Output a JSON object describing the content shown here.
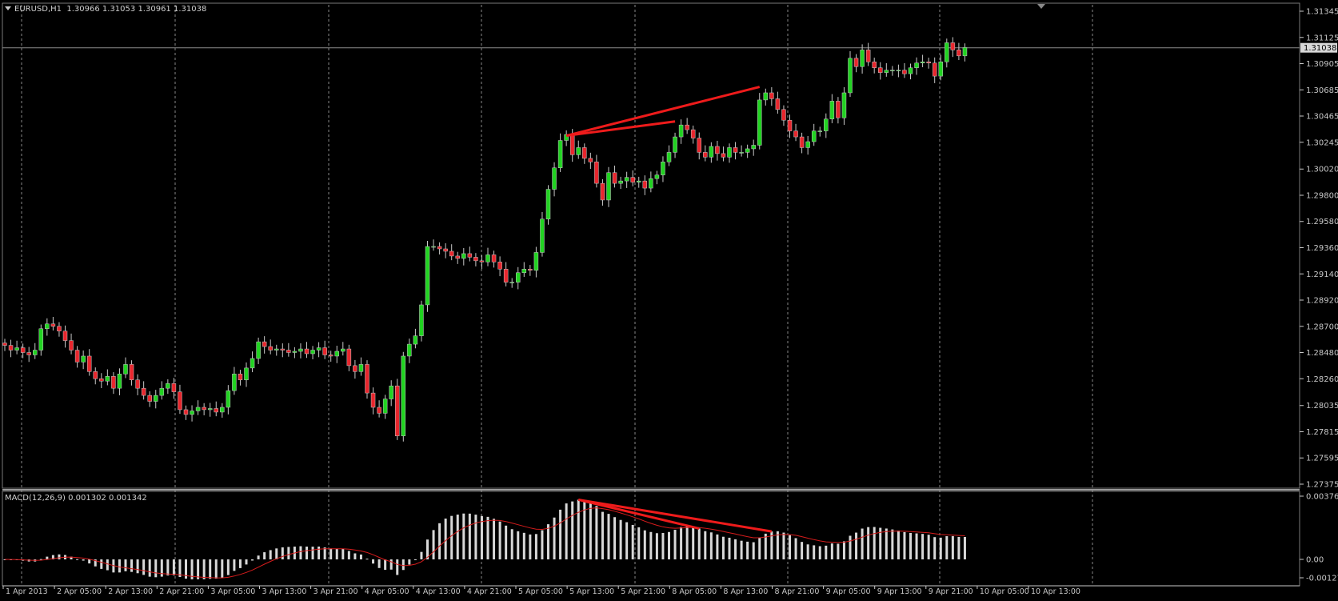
{
  "main_panel": {
    "symbol": "EURUSD,H1",
    "ohlc": "1.30966 1.31053 1.30961 1.31038",
    "current_price_label": "1.31038"
  },
  "macd_panel": {
    "title": "MACD(12,26,9) 0.001302 0.001342",
    "scale_labels": [
      "0.003766",
      "0.00",
      "-0.001278"
    ]
  },
  "colors": {
    "background": "#000000",
    "bull": "#21d321",
    "bear": "#e8262d",
    "grid": "#a0a0a0",
    "axis": "#c8c8c8",
    "trendline": "#ee1b1b",
    "macd_histogram": "#d8d8d8",
    "macd_signal": "#d61c1c"
  },
  "chart_data": [
    {
      "type": "candlestick",
      "ylim": [
        1.27375,
        1.31345
      ],
      "ytick_labels": [
        "1.31345",
        "1.31125",
        "1.30905",
        "1.30685",
        "1.30465",
        "1.30245",
        "1.30020",
        "1.29800",
        "1.29580",
        "1.29360",
        "1.29140",
        "1.28920",
        "1.28700",
        "1.28480",
        "1.28260",
        "1.28035",
        "1.27815",
        "1.27595",
        "1.27375"
      ],
      "xtick_labels": [
        "1 Apr 2013",
        "2 Apr 05:00",
        "2 Apr 13:00",
        "2 Apr 21:00",
        "3 Apr 05:00",
        "3 Apr 13:00",
        "3 Apr 21:00",
        "4 Apr 05:00",
        "4 Apr 13:00",
        "4 Apr 21:00",
        "5 Apr 05:00",
        "5 Apr 13:00",
        "5 Apr 21:00",
        "8 Apr 05:00",
        "8 Apr 13:00",
        "8 Apr 21:00",
        "9 Apr 05:00",
        "9 Apr 13:00",
        "9 Apr 21:00",
        "10 Apr 05:00",
        "10 Apr 13:00"
      ],
      "grid": true,
      "current_price": 1.31038,
      "close": [
        1.2854,
        1.285,
        1.2852,
        1.2848,
        1.2846,
        1.285,
        1.2868,
        1.2872,
        1.287,
        1.2866,
        1.2858,
        1.285,
        1.284,
        1.2845,
        1.2832,
        1.2826,
        1.2824,
        1.2828,
        1.2818,
        1.283,
        1.2838,
        1.2825,
        1.2818,
        1.2812,
        1.2807,
        1.2812,
        1.2818,
        1.2822,
        1.2815,
        1.28,
        1.2796,
        1.2799,
        1.2802,
        1.28,
        1.2801,
        1.2798,
        1.2802,
        1.2816,
        1.283,
        1.2825,
        1.2835,
        1.2843,
        1.2857,
        1.2853,
        1.285,
        1.2851,
        1.285,
        1.2848,
        1.2849,
        1.2851,
        1.2847,
        1.285,
        1.2852,
        1.2846,
        1.2845,
        1.2849,
        1.2851,
        1.2837,
        1.2832,
        1.2838,
        1.2814,
        1.2802,
        1.2797,
        1.2809,
        1.282,
        1.2778,
        1.2845,
        1.2855,
        1.2862,
        1.2888,
        1.2937,
        1.2937,
        1.2935,
        1.2933,
        1.2929,
        1.2927,
        1.2931,
        1.2928,
        1.2925,
        1.2924,
        1.293,
        1.2924,
        1.2918,
        1.2907,
        1.2907,
        1.2915,
        1.2918,
        1.2917,
        1.2932,
        1.296,
        1.2985,
        1.3003,
        1.3026,
        1.3031,
        1.3014,
        1.302,
        1.3011,
        1.3008,
        1.299,
        1.2976,
        1.2999,
        1.299,
        1.2992,
        1.2995,
        1.2991,
        1.2992,
        1.2986,
        1.2994,
        1.2997,
        1.3008,
        1.3016,
        1.3029,
        1.3039,
        1.3035,
        1.3028,
        1.3016,
        1.3012,
        1.3021,
        1.3015,
        1.3012,
        1.302,
        1.3016,
        1.3016,
        1.3019,
        1.3022,
        1.306,
        1.3066,
        1.3061,
        1.3052,
        1.3043,
        1.3034,
        1.3029,
        1.302,
        1.3025,
        1.3034,
        1.3034,
        1.3044,
        1.3059,
        1.3045,
        1.3066,
        1.3095,
        1.3088,
        1.3102,
        1.3092,
        1.3087,
        1.3083,
        1.3085,
        1.3085,
        1.3085,
        1.3082,
        1.3087,
        1.3091,
        1.3092,
        1.3091,
        1.308,
        1.3092,
        1.3108,
        1.3102,
        1.3097,
        1.3104
      ],
      "open_offset": 1
    },
    {
      "type": "macd",
      "label": "MACD(12,26,9)",
      "macd": 0.001302,
      "signal": 0.001342,
      "ylim": [
        -0.001278,
        0.003766
      ]
    }
  ]
}
